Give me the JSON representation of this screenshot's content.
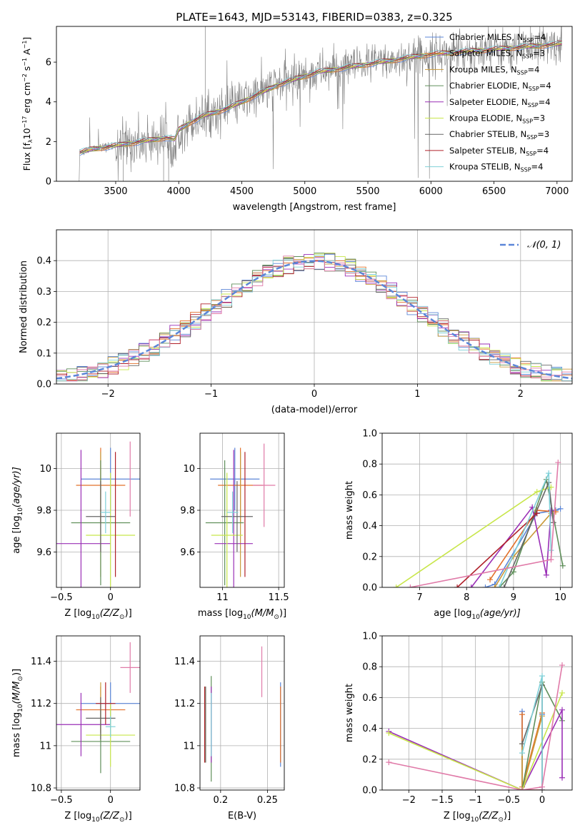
{
  "title": "PLATE=1643, MJD=53143, FIBERID=0383, z=0.325",
  "colors": {
    "chabrier_miles": "#5b86d8",
    "salpeter_miles": "#e2702a",
    "kroupa_miles": "#c99a3a",
    "chabrier_elodie": "#5f8f5a",
    "salpeter_elodie": "#9a2fb6",
    "kroupa_elodie": "#c8e64a",
    "chabrier_stelib": "#666666",
    "salpeter_stelib": "#b0202a",
    "kroupa_stelib": "#7fd0d8",
    "pink": "#e07aa8",
    "gaussian": "#5b86d8",
    "data_gray": "#808080"
  },
  "chart_data": [
    {
      "id": "spectrum",
      "type": "line",
      "xlabel": "wavelength [Angstrom, rest frame]",
      "ylabel": "Flux [f",
      "ylabel_sub": "λ",
      "ylabel_rest": "10",
      "ylabel_exp1": "−17",
      "ylabel_mid": " erg cm",
      "ylabel_exp2": "−2",
      "ylabel_mid2": " s",
      "ylabel_exp3": "−1",
      "ylabel_end": " A",
      "ylabel_exp4": "−1",
      "ylabel_close": "]",
      "xlim": [
        3030,
        7120
      ],
      "ylim": [
        0,
        7.8
      ],
      "xticks": [
        3500,
        4000,
        4500,
        5000,
        5500,
        6000,
        6500,
        7000
      ],
      "yticks": [
        0,
        2,
        4,
        6
      ],
      "grid": false,
      "continuum": [
        [
          3210,
          0
        ],
        [
          3215,
          1.45
        ],
        [
          3300,
          1.6
        ],
        [
          3400,
          1.7
        ],
        [
          3500,
          1.8
        ],
        [
          3600,
          1.9
        ],
        [
          3700,
          2.0
        ],
        [
          3800,
          2.1
        ],
        [
          3900,
          2.2
        ],
        [
          3970,
          2.1
        ],
        [
          4000,
          2.6
        ],
        [
          4100,
          3.0
        ],
        [
          4200,
          3.3
        ],
        [
          4300,
          3.5
        ],
        [
          4400,
          3.7
        ],
        [
          4500,
          4.0
        ],
        [
          4600,
          4.3
        ],
        [
          4700,
          4.6
        ],
        [
          4800,
          4.9
        ],
        [
          4900,
          5.1
        ],
        [
          5000,
          5.3
        ],
        [
          5100,
          5.5
        ],
        [
          5200,
          5.6
        ],
        [
          5300,
          5.7
        ],
        [
          5400,
          5.8
        ],
        [
          5500,
          5.9
        ],
        [
          5600,
          6.0
        ],
        [
          5700,
          6.1
        ],
        [
          5800,
          6.2
        ],
        [
          5900,
          6.3
        ],
        [
          6000,
          6.4
        ],
        [
          6200,
          6.5
        ],
        [
          6400,
          6.6
        ],
        [
          6600,
          6.7
        ],
        [
          6800,
          6.8
        ],
        [
          7000,
          6.9
        ],
        [
          7040,
          6.95
        ]
      ],
      "legend_position": "upper right",
      "legend": [
        {
          "label": "Chabrier MILES, N",
          "sub": "SSP",
          "tail": "=4",
          "color": "#5b86d8"
        },
        {
          "label": "Salpeter MILES, N",
          "sub": "SSP",
          "tail": "=3",
          "color": "#e2702a"
        },
        {
          "label": "Kroupa MILES, N",
          "sub": "SSP",
          "tail": "=4",
          "color": "#c99a3a"
        },
        {
          "label": "Chabrier ELODIE, N",
          "sub": "SSP",
          "tail": "=4",
          "color": "#5f8f5a"
        },
        {
          "label": "Salpeter ELODIE, N",
          "sub": "SSP",
          "tail": "=4",
          "color": "#9a2fb6"
        },
        {
          "label": "Kroupa ELODIE, N",
          "sub": "SSP",
          "tail": "=3",
          "color": "#c8e64a"
        },
        {
          "label": "Chabrier STELIB, N",
          "sub": "SSP",
          "tail": "=3",
          "color": "#666666"
        },
        {
          "label": "Salpeter STELIB, N",
          "sub": "SSP",
          "tail": "=4",
          "color": "#b0202a"
        },
        {
          "label": "Kroupa STELIB, N",
          "sub": "SSP",
          "tail": "=4",
          "color": "#7fd0d8"
        }
      ]
    },
    {
      "id": "residuals",
      "type": "line",
      "xlabel": "(data-model)/error",
      "ylabel": "Normed distribution",
      "xlim": [
        -2.5,
        2.5
      ],
      "ylim": [
        0,
        0.5
      ],
      "xticks": [
        -2,
        -1,
        0,
        1,
        2
      ],
      "yticks": [
        0.0,
        0.1,
        0.2,
        0.3,
        0.4
      ],
      "grid": true,
      "legend_position": "upper right",
      "legend_label": "𝒩(0, 1)",
      "bin_width": 0.1
    },
    {
      "id": "age_vs_Z",
      "type": "scatter",
      "xlabel": "Z [log",
      "xlabel_sub": "10",
      "xlabel_tail": "(Z/Z",
      "xlabel_sun": "⊙",
      "xlabel_close": ")]",
      "ylabel": "age  [log",
      "ylabel_sub": "10",
      "ylabel_tail": "(age/yr)]",
      "xlim": [
        -0.55,
        0.3
      ],
      "ylim": [
        9.43,
        10.17
      ],
      "xticks": [
        -0.5,
        0.0
      ],
      "yticks": [
        9.6,
        9.8,
        10.0
      ],
      "grid": true,
      "points": [
        {
          "color": "#5b86d8",
          "x": 0.0,
          "xerr": 0.3,
          "y": 9.95,
          "yerr": 0.15
        },
        {
          "color": "#e2702a",
          "x": -0.1,
          "xerr": 0.25,
          "y": 9.92,
          "yerr": 0.18
        },
        {
          "color": "#c99a3a",
          "x": -0.1,
          "xerr": 0.0,
          "y": 9.78,
          "yerr": 0.3
        },
        {
          "color": "#5f8f5a",
          "x": -0.1,
          "xerr": 0.3,
          "y": 9.74,
          "yerr": 0.3
        },
        {
          "color": "#9a2fb6",
          "x": -0.3,
          "xerr": 0.3,
          "y": 9.64,
          "yerr": 0.45
        },
        {
          "color": "#c8e64a",
          "x": 0.0,
          "xerr": 0.25,
          "y": 9.68,
          "yerr": 0.3
        },
        {
          "color": "#666666",
          "x": -0.1,
          "xerr": 0.15,
          "y": 9.77,
          "yerr": 0.17
        },
        {
          "color": "#b0202a",
          "x": 0.05,
          "xerr": 0.0,
          "y": 9.78,
          "yerr": 0.3
        },
        {
          "color": "#7fd0d8",
          "x": -0.05,
          "xerr": 0.05,
          "y": 9.79,
          "yerr": 0.1
        },
        {
          "color": "#e07aa8",
          "x": 0.2,
          "xerr": 0.0,
          "y": 9.95,
          "yerr": 0.18
        }
      ]
    },
    {
      "id": "age_vs_mass",
      "type": "scatter",
      "xlabel": "mass [log",
      "xlabel_sub": "10",
      "xlabel_tail": "(M/M",
      "xlabel_sun": "⊙",
      "xlabel_close": ")]",
      "xlim": [
        10.8,
        11.55
      ],
      "ylim": [
        9.43,
        10.17
      ],
      "xticks": [
        11.0,
        11.5
      ],
      "yticks": [
        9.6,
        9.8,
        10.0
      ],
      "grid": true,
      "points": [
        {
          "color": "#5b86d8",
          "x": 11.11,
          "xerr": 0.22,
          "y": 9.95,
          "yerr": 0.15
        },
        {
          "color": "#e2702a",
          "x": 11.16,
          "xerr": 0.2,
          "y": 9.92,
          "yerr": 0.18
        },
        {
          "color": "#c99a3a",
          "x": 11.16,
          "xerr": 0.0,
          "y": 9.78,
          "yerr": 0.3
        },
        {
          "color": "#5f8f5a",
          "x": 11.02,
          "xerr": 0.17,
          "y": 9.74,
          "yerr": 0.3
        },
        {
          "color": "#9a2fb6",
          "x": 11.1,
          "xerr": 0.17,
          "y": 9.64,
          "yerr": 0.45
        },
        {
          "color": "#c8e64a",
          "x": 11.04,
          "xerr": 0.14,
          "y": 9.68,
          "yerr": 0.3
        },
        {
          "color": "#666666",
          "x": 11.13,
          "xerr": 0.14,
          "y": 9.77,
          "yerr": 0.17
        },
        {
          "color": "#b0202a",
          "x": 11.2,
          "xerr": 0.0,
          "y": 9.78,
          "yerr": 0.3
        },
        {
          "color": "#7fd0d8",
          "x": 11.09,
          "xerr": 0.05,
          "y": 9.79,
          "yerr": 0.1
        },
        {
          "color": "#e07aa8",
          "x": 11.37,
          "xerr": 0.1,
          "y": 9.92,
          "yerr": 0.2
        }
      ]
    },
    {
      "id": "mass_weight_vs_age",
      "type": "line",
      "xlabel": "age  [log",
      "xlabel_sub": "10",
      "xlabel_tail": "(age/yr)]",
      "ylabel": "mass weight",
      "xlim": [
        6.2,
        10.25
      ],
      "ylim": [
        0,
        1.0
      ],
      "xticks": [
        7,
        8,
        9,
        10
      ],
      "yticks": [
        0.0,
        0.2,
        0.4,
        0.6,
        0.8,
        1.0
      ],
      "grid": true,
      "series": [
        {
          "color": "#5b86d8",
          "points": [
            [
              8.4,
              0.0
            ],
            [
              8.6,
              0.02
            ],
            [
              9.5,
              0.48
            ],
            [
              9.9,
              0.5
            ],
            [
              10.0,
              0.51
            ]
          ]
        },
        {
          "color": "#e2702a",
          "points": [
            [
              8.5,
              0.05
            ],
            [
              9.5,
              0.5
            ],
            [
              9.9,
              0.49
            ]
          ]
        },
        {
          "color": "#c99a3a",
          "points": [
            [
              8.6,
              0.0
            ],
            [
              9.0,
              0.2
            ],
            [
              9.8,
              0.48
            ]
          ]
        },
        {
          "color": "#5f8f5a",
          "points": [
            [
              8.7,
              0.0
            ],
            [
              9.0,
              0.1
            ],
            [
              9.7,
              0.7
            ],
            [
              10.05,
              0.14
            ]
          ]
        },
        {
          "color": "#9a2fb6",
          "points": [
            [
              8.1,
              0.0
            ],
            [
              9.4,
              0.52
            ],
            [
              9.7,
              0.08
            ],
            [
              9.8,
              0.5
            ]
          ]
        },
        {
          "color": "#c8e64a",
          "points": [
            [
              6.5,
              0.0
            ],
            [
              9.5,
              0.62
            ],
            [
              9.8,
              0.65
            ]
          ]
        },
        {
          "color": "#666666",
          "points": [
            [
              8.8,
              0.0
            ],
            [
              9.75,
              0.68
            ],
            [
              9.85,
              0.42
            ]
          ]
        },
        {
          "color": "#b0202a",
          "points": [
            [
              7.8,
              0.0
            ],
            [
              9.5,
              0.48
            ]
          ]
        },
        {
          "color": "#7fd0d8",
          "points": [
            [
              8.7,
              0.0
            ],
            [
              9.75,
              0.74
            ],
            [
              9.8,
              0.24
            ]
          ]
        },
        {
          "color": "#e07aa8",
          "points": [
            [
              6.8,
              0.0
            ],
            [
              9.8,
              0.18
            ],
            [
              9.95,
              0.81
            ]
          ]
        }
      ]
    },
    {
      "id": "mass_vs_Z",
      "type": "scatter",
      "xlabel": "Z [log",
      "xlabel_sub": "10",
      "xlabel_tail": "(Z/Z",
      "xlabel_sun": "⊙",
      "xlabel_close": ")]",
      "ylabel": "mass [log",
      "ylabel_sub": "10",
      "ylabel_tail": "(M/M",
      "ylabel_sun": "⊙",
      "ylabel_close": ")]",
      "xlim": [
        -0.55,
        0.3
      ],
      "ylim": [
        10.79,
        11.52
      ],
      "xticks": [
        -0.5,
        0.0
      ],
      "yticks": [
        10.8,
        11.0,
        11.2,
        11.4
      ],
      "grid": true,
      "points": [
        {
          "color": "#5b86d8",
          "x": 0.0,
          "xerr": 0.3,
          "y": 11.2,
          "yerr": 0.1
        },
        {
          "color": "#e2702a",
          "x": -0.1,
          "xerr": 0.25,
          "y": 11.17,
          "yerr": 0.11
        },
        {
          "color": "#c99a3a",
          "x": -0.1,
          "xerr": 0.0,
          "y": 11.16,
          "yerr": 0.14
        },
        {
          "color": "#5f8f5a",
          "x": -0.1,
          "xerr": 0.3,
          "y": 11.02,
          "yerr": 0.15
        },
        {
          "color": "#9a2fb6",
          "x": -0.3,
          "xerr": 0.3,
          "y": 11.1,
          "yerr": 0.15
        },
        {
          "color": "#c8e64a",
          "x": 0.0,
          "xerr": 0.25,
          "y": 11.05,
          "yerr": 0.15
        },
        {
          "color": "#666666",
          "x": -0.1,
          "xerr": 0.15,
          "y": 11.13,
          "yerr": 0.1
        },
        {
          "color": "#b0202a",
          "x": -0.05,
          "xerr": 0.1,
          "y": 11.2,
          "yerr": 0.1
        },
        {
          "color": "#7fd0d8",
          "x": 0.0,
          "xerr": 0.05,
          "y": 11.09,
          "yerr": 0.05
        },
        {
          "color": "#e07aa8",
          "x": 0.2,
          "xerr": 0.1,
          "y": 11.37,
          "yerr": 0.12
        }
      ]
    },
    {
      "id": "mass_vs_ebv",
      "type": "scatter",
      "xlabel": "E(B-V)",
      "xlim": [
        0.178,
        0.268
      ],
      "ylim": [
        10.79,
        11.52
      ],
      "xticks": [
        0.2,
        0.25
      ],
      "yticks": [
        10.8,
        11.0,
        11.2,
        11.4
      ],
      "grid": true,
      "points": [
        {
          "color": "#5b86d8",
          "x": 0.264,
          "y": 11.1,
          "yerr": 0.2
        },
        {
          "color": "#e2702a",
          "x": 0.264,
          "y": 11.1,
          "yerr": 0.18
        },
        {
          "color": "#c99a3a",
          "x": 0.183,
          "y": 11.1,
          "yerr": 0.18
        },
        {
          "color": "#5f8f5a",
          "x": 0.19,
          "y": 11.08,
          "yerr": 0.25
        },
        {
          "color": "#9a2fb6",
          "x": 0.19,
          "y": 11.1,
          "yerr": 0.18
        },
        {
          "color": "#c8e64a",
          "x": 0.184,
          "y": 11.1,
          "yerr": 0.18
        },
        {
          "color": "#666666",
          "x": 0.184,
          "y": 11.1,
          "yerr": 0.18
        },
        {
          "color": "#b0202a",
          "x": 0.183,
          "y": 11.1,
          "yerr": 0.18
        },
        {
          "color": "#7fd0d8",
          "x": 0.19,
          "y": 11.1,
          "yerr": 0.15
        },
        {
          "color": "#e07aa8",
          "x": 0.244,
          "y": 11.35,
          "yerr": 0.12
        }
      ]
    },
    {
      "id": "mass_weight_vs_Z",
      "type": "line",
      "xlabel": "Z [log",
      "xlabel_sub": "10",
      "xlabel_tail": "(Z/Z",
      "xlabel_sun": "⊙",
      "xlabel_close": ")]",
      "ylabel": "mass weight",
      "xlim": [
        -2.4,
        0.45
      ],
      "ylim": [
        0,
        1.0
      ],
      "xticks": [
        -2.0,
        -1.5,
        -1.0,
        -0.5,
        0.0
      ],
      "yticks": [
        0.0,
        0.2,
        0.4,
        0.6,
        0.8,
        1.0
      ],
      "grid": true,
      "series": [
        {
          "color": "#5b86d8",
          "points": [
            [
              -0.3,
              0.51
            ],
            [
              -0.3,
              0.0
            ],
            [
              0.0,
              0.49
            ]
          ]
        },
        {
          "color": "#e2702a",
          "points": [
            [
              -0.3,
              0.49
            ],
            [
              -0.3,
              0.02
            ],
            [
              0.0,
              0.5
            ]
          ]
        },
        {
          "color": "#c99a3a",
          "points": [
            [
              -0.3,
              0.3
            ],
            [
              -0.3,
              0.0
            ],
            [
              0.0,
              0.48
            ]
          ]
        },
        {
          "color": "#5f8f5a",
          "points": [
            [
              -0.3,
              0.0
            ],
            [
              0.0,
              0.7
            ],
            [
              0.3,
              0.45
            ]
          ]
        },
        {
          "color": "#9a2fb6",
          "points": [
            [
              -2.3,
              0.38
            ],
            [
              -0.3,
              0.0
            ],
            [
              0.3,
              0.52
            ],
            [
              0.3,
              0.08
            ]
          ]
        },
        {
          "color": "#c8e64a",
          "points": [
            [
              -2.3,
              0.37
            ],
            [
              -0.3,
              0.0
            ],
            [
              0.3,
              0.63
            ]
          ]
        },
        {
          "color": "#666666",
          "points": [
            [
              -0.3,
              0.3
            ],
            [
              0.0,
              0.68
            ],
            [
              0.0,
              0.0
            ]
          ]
        },
        {
          "color": "#b0202a",
          "points": [
            [
              -0.3,
              0.0
            ],
            [
              0.0,
              0.0
            ]
          ]
        },
        {
          "color": "#7fd0d8",
          "points": [
            [
              -0.3,
              0.24
            ],
            [
              0.0,
              0.74
            ],
            [
              0.0,
              0.0
            ]
          ]
        },
        {
          "color": "#e07aa8",
          "points": [
            [
              -2.3,
              0.18
            ],
            [
              -0.3,
              0.0
            ],
            [
              0.0,
              0.02
            ],
            [
              0.3,
              0.81
            ]
          ]
        }
      ]
    }
  ]
}
